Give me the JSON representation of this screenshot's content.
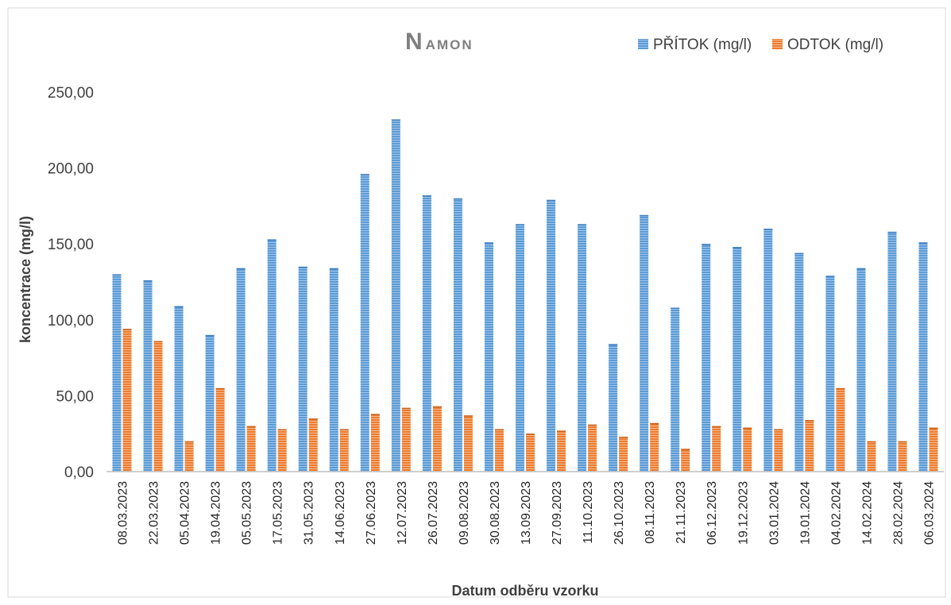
{
  "chart_data": {
    "type": "bar",
    "title": {
      "main": "N",
      "subscript": "AMON"
    },
    "xlabel": "Datum odběru vzorku",
    "ylabel": "koncentrace (mg/l)",
    "ylim": [
      0,
      250
    ],
    "yticks": [
      "0,00",
      "50,00",
      "100,00",
      "150,00",
      "200,00",
      "250,00"
    ],
    "grid": false,
    "legend_position": "top-right",
    "categories": [
      "08.03.2023",
      "22.03.2023",
      "05.04.2023",
      "19.04.2023",
      "05.05.2023",
      "17.05.2023",
      "31.05.2023",
      "14.06.2023",
      "27.06.2023",
      "12.07.2023",
      "26.07.2023",
      "09.08.2023",
      "30.08.2023",
      "13.09.2023",
      "27.09.2023",
      "11.10.2023",
      "26.10.2023",
      "08.11.2023",
      "21.11.2023",
      "06.12.2023",
      "19.12.2023",
      "03.01.2024",
      "19.01.2024",
      "04.02.2024",
      "14.02.2024",
      "28.02.2024",
      "06.03.2024"
    ],
    "series": [
      {
        "name": "PŘÍTOK (mg/l)",
        "color": "#5b9bd5",
        "values": [
          130,
          126,
          109,
          90,
          134,
          153,
          135,
          134,
          196,
          232,
          182,
          180,
          151,
          163,
          179,
          163,
          84,
          169,
          108,
          150,
          148,
          160,
          144,
          129,
          134,
          158,
          151
        ]
      },
      {
        "name": "ODTOK (mg/l)",
        "color": "#ed7d31",
        "values": [
          94,
          86,
          20,
          55,
          30,
          28,
          35,
          28,
          38,
          42,
          43,
          37,
          28,
          25,
          27,
          31,
          23,
          32,
          15,
          30,
          29,
          28,
          34,
          55,
          20,
          20,
          29
        ]
      }
    ]
  }
}
